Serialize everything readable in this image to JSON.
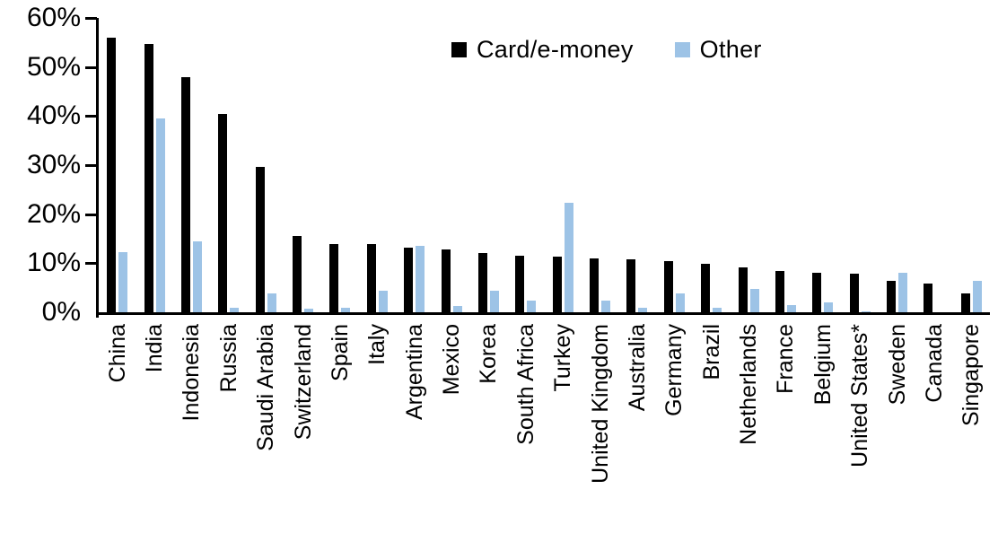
{
  "chart_data": {
    "type": "bar",
    "title": "",
    "xlabel": "",
    "ylabel": "",
    "ylim": [
      0,
      60
    ],
    "ytick_labels": [
      "0%",
      "10%",
      "20%",
      "30%",
      "40%",
      "50%",
      "60%"
    ],
    "grid": "off",
    "legend_position": "top-center",
    "categories": [
      "China",
      "India",
      "Indonesia",
      "Russia",
      "Saudi Arabia",
      "Switzerland",
      "Spain",
      "Italy",
      "Argentina",
      "Mexico",
      "Korea",
      "South Africa",
      "Turkey",
      "United Kingdom",
      "Australia",
      "Germany",
      "Brazil",
      "Netherlands",
      "France",
      "Belgium",
      "United States*",
      "Sweden",
      "Canada",
      "Singapore"
    ],
    "series": [
      {
        "name": "Card/e-money",
        "color": "#000000",
        "values": [
          56.0,
          54.7,
          48.0,
          40.4,
          29.6,
          15.5,
          14.0,
          13.9,
          13.2,
          12.8,
          12.1,
          11.6,
          11.4,
          11.0,
          10.8,
          10.5,
          9.9,
          9.1,
          8.5,
          8.1,
          7.8,
          6.4,
          5.8,
          3.8
        ]
      },
      {
        "name": "Other",
        "color": "#9DC3E6",
        "values": [
          12.2,
          39.6,
          14.4,
          1.0,
          3.8,
          0.8,
          1.0,
          4.4,
          13.6,
          1.2,
          4.4,
          2.4,
          22.3,
          2.4,
          0.9,
          3.8,
          1.0,
          4.8,
          1.5,
          2.0,
          0.2,
          8.0,
          0.0,
          6.5
        ]
      }
    ]
  }
}
